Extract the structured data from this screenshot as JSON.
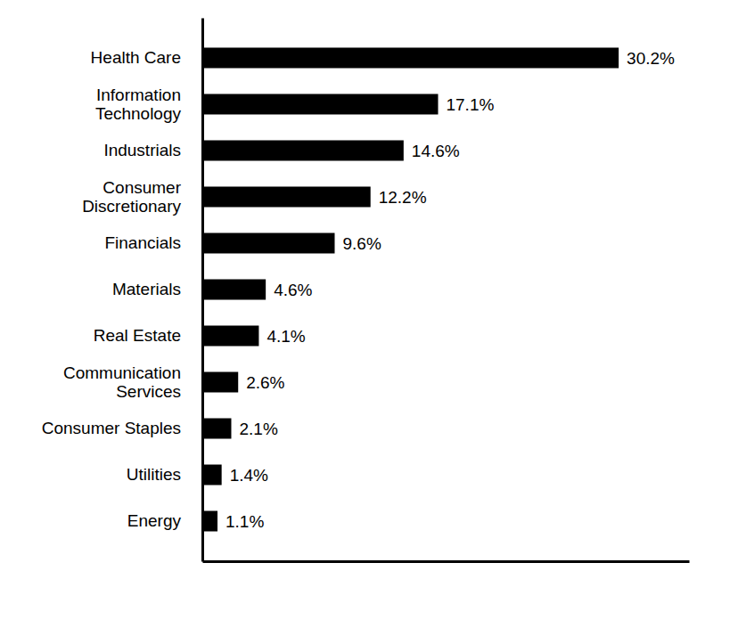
{
  "chart_data": {
    "type": "bar",
    "orientation": "horizontal",
    "categories": [
      "Health Care",
      "Information\nTechnology",
      "Industrials",
      "Consumer\nDiscretionary",
      "Financials",
      "Materials",
      "Real Estate",
      "Communication\nServices",
      "Consumer Staples",
      "Utilities",
      "Energy"
    ],
    "values": [
      30.2,
      17.1,
      14.6,
      12.2,
      9.6,
      4.6,
      4.1,
      2.6,
      2.1,
      1.4,
      1.1
    ],
    "value_labels": [
      "30.2%",
      "17.1%",
      "14.6%",
      "12.2%",
      "9.6%",
      "4.6%",
      "4.1%",
      "2.6%",
      "2.1%",
      "1.4%",
      "1.1%"
    ],
    "color": "#000000",
    "xlim": [
      0,
      35.3
    ],
    "data_labels": true,
    "tick_labels": "y",
    "grid": false
  }
}
